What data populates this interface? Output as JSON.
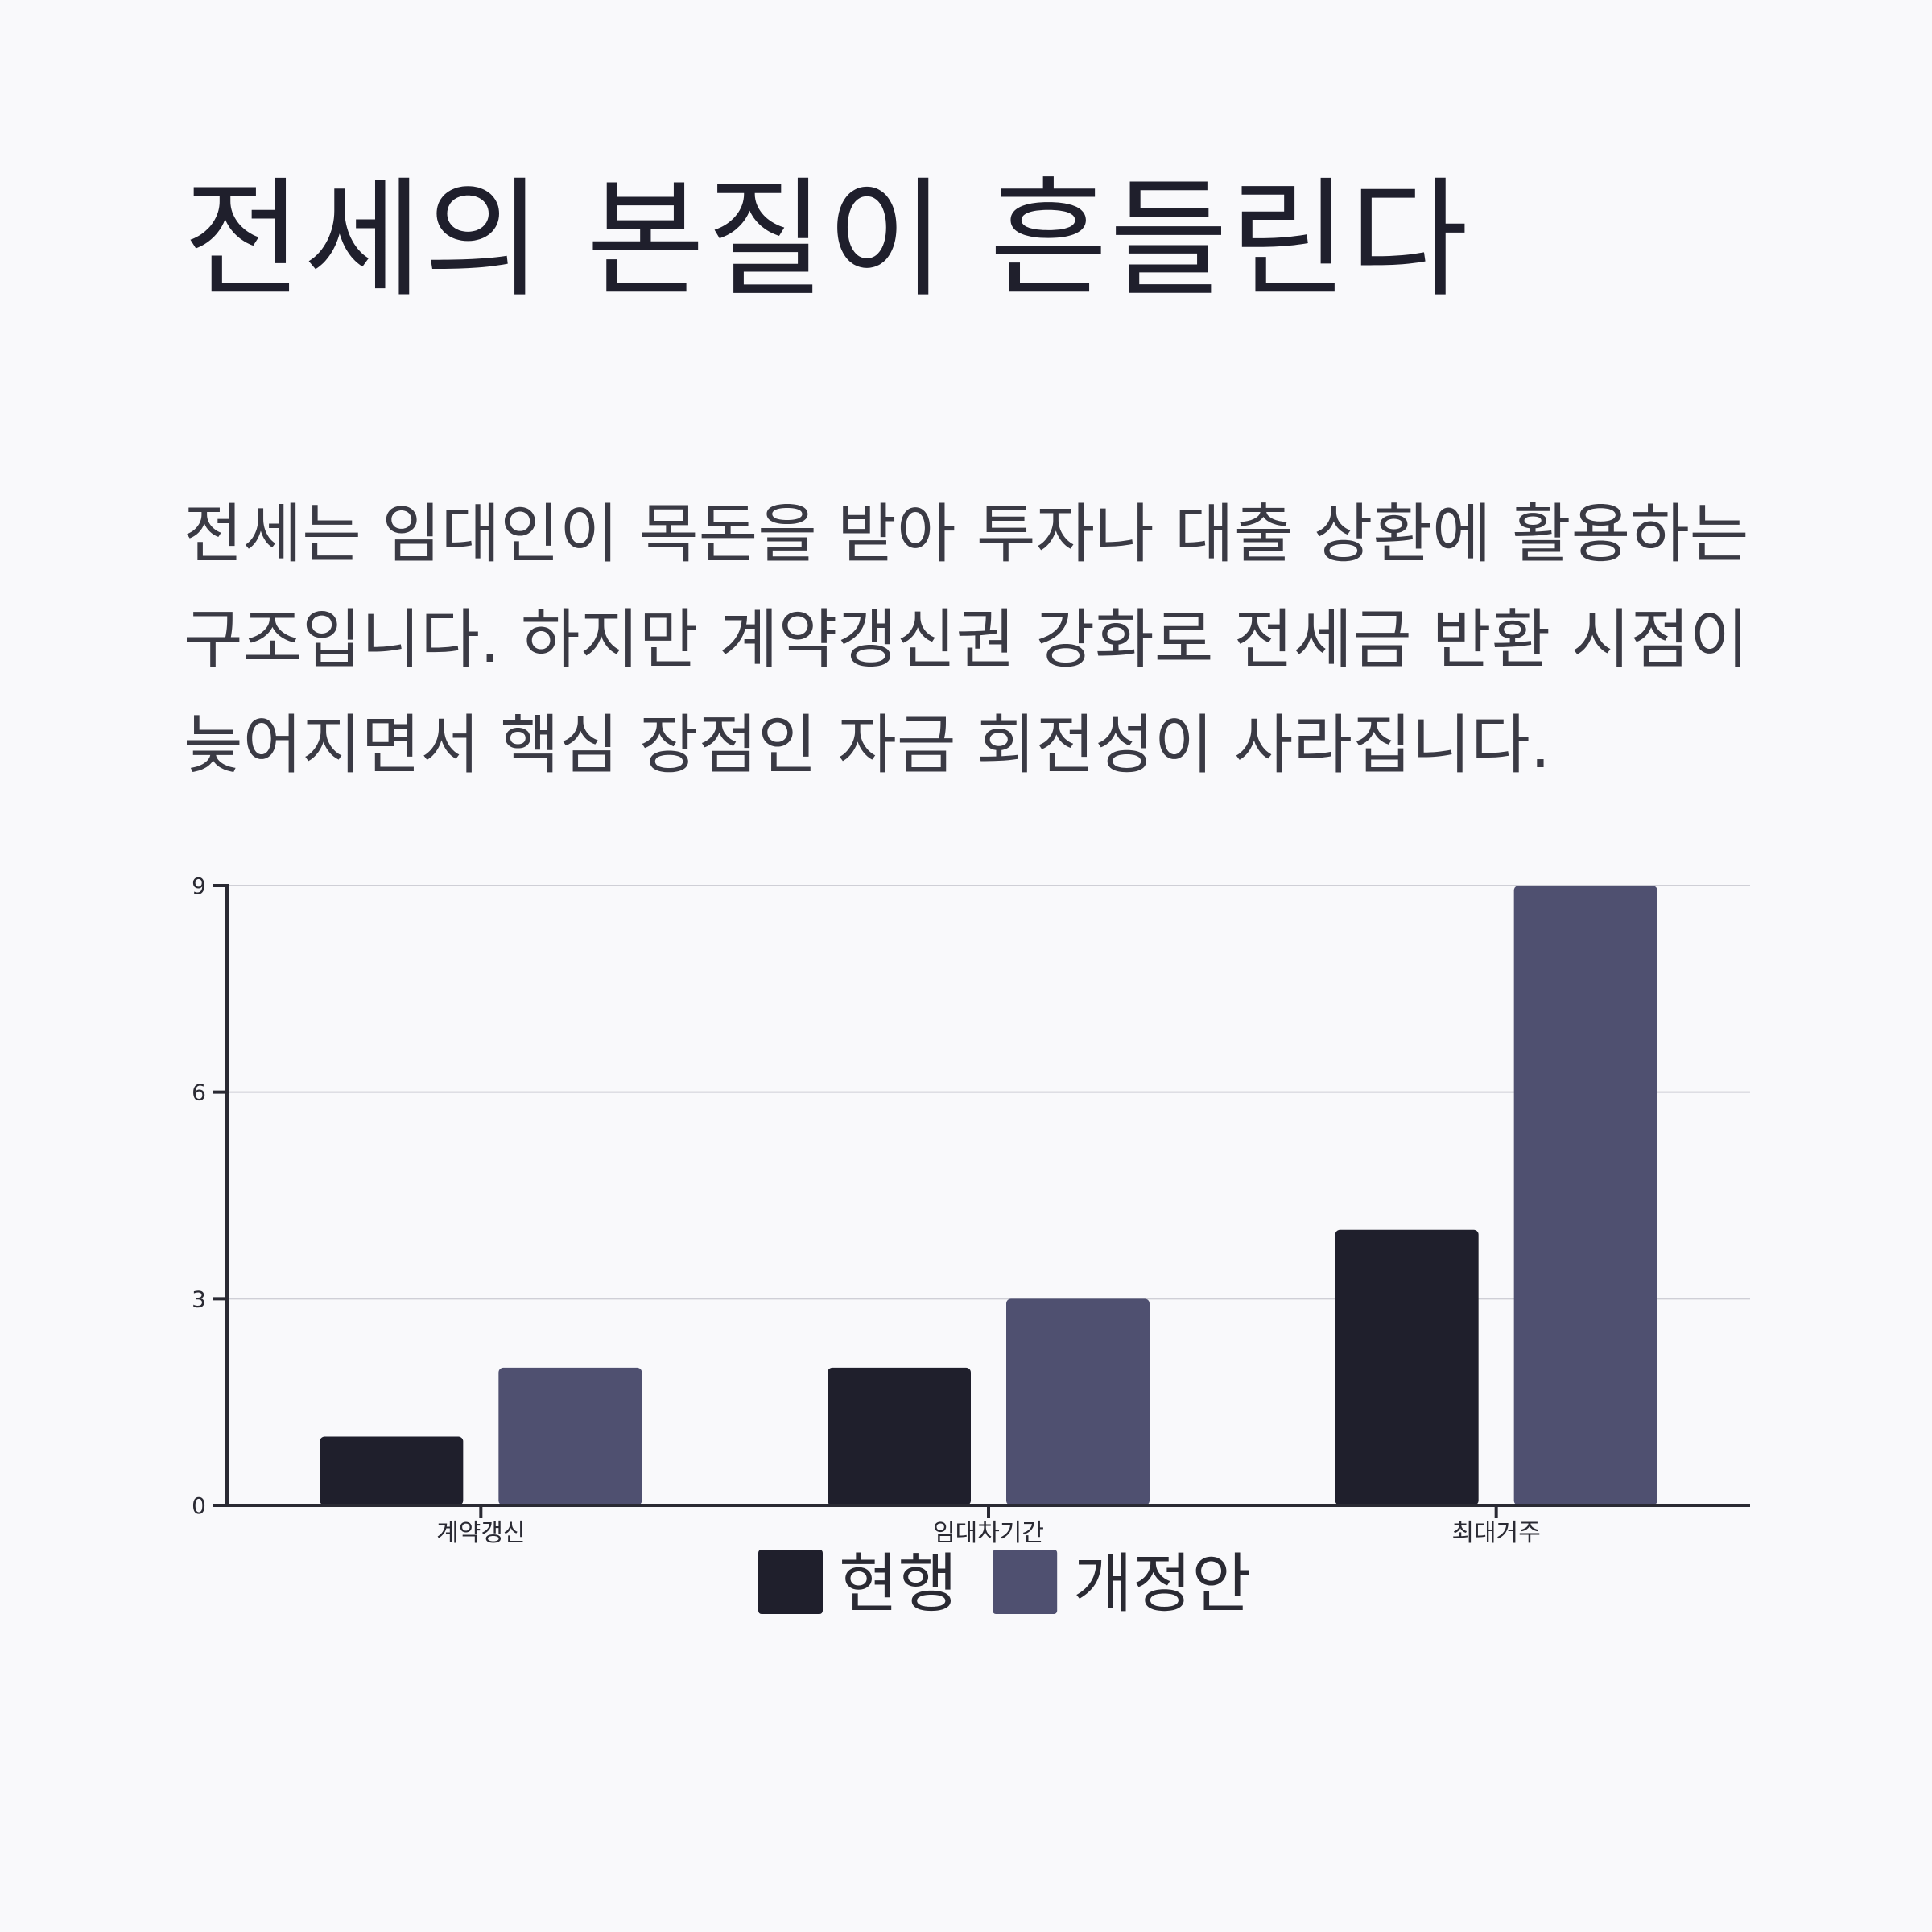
{
  "header": {
    "title": "전세의 본질이 흔들린다",
    "body": "전세는 임대인이 목돈을 받아 투자나 대출 상환에 활용하는 구조입니다. 하지만 계약갱신권 강화로 전세금 반환 시점이 늦어지면서 핵심 장점인 자금 회전성이 사라집니다."
  },
  "chart_data": {
    "type": "bar",
    "categories": [
      "계약갱신",
      "임대차기간",
      "최대거주"
    ],
    "series": [
      {
        "name": "현행",
        "values": [
          1,
          2,
          4
        ],
        "color": "#1f1f2c"
      },
      {
        "name": "개정안",
        "values": [
          2,
          3,
          9
        ],
        "color": "#4f5070"
      }
    ],
    "title": "",
    "xlabel": "",
    "ylabel": "",
    "ylim": [
      0,
      9
    ],
    "yticks": [
      0,
      3,
      6,
      9
    ],
    "grid": true,
    "legend_position": "bottom-center"
  }
}
